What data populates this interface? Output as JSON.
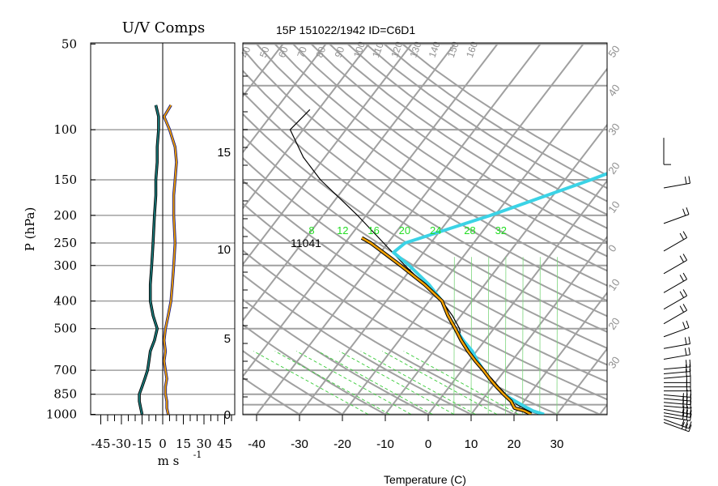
{
  "header": {
    "left_title": "U/V Comps",
    "main_title": "15P 151022/1942 ID=C6D1"
  },
  "left_panel": {
    "ylabel": "P (hPa)",
    "xlabel": "m s",
    "xlabel_exp": "-1",
    "pressure_ticks": [
      "50",
      "100",
      "150",
      "200",
      "250",
      "300",
      "400",
      "500",
      "700",
      "850",
      "1000"
    ],
    "x_ticks": [
      "-45",
      "-30",
      "-15",
      "0",
      "15",
      "30",
      "45"
    ]
  },
  "skewt": {
    "xlabel": "Temperature (C)",
    "x_ticks": [
      "-40",
      "-30",
      "-20",
      "-10",
      "0",
      "10",
      "20",
      "30"
    ],
    "height_ticks": [
      "0",
      "5",
      "10",
      "15"
    ],
    "mixing_ratio_labels": [
      "8",
      "12",
      "16",
      "20",
      "24",
      "28",
      "32"
    ],
    "isotherm_top_labels": [
      "40",
      "50",
      "60",
      "70",
      "80",
      "90",
      "100",
      "110",
      "120",
      "130",
      "140",
      "150",
      "160"
    ],
    "right_labels": [
      "50",
      "40",
      "30",
      "20",
      "10",
      "0",
      "10",
      "20",
      "30"
    ],
    "annotation": "11041"
  },
  "chart_data": [
    {
      "type": "line",
      "title": "U/V Comps",
      "xlabel": "m s -1",
      "ylabel": "P (hPa)",
      "xlim": [
        -50,
        50
      ],
      "ylim": [
        1000,
        50
      ],
      "y_scale": "log",
      "series": [
        {
          "color": "#1a7a7a",
          "p": [
            1000,
            950,
            900,
            850,
            800,
            750,
            700,
            650,
            600,
            550,
            500,
            450,
            400,
            350,
            300,
            250,
            200,
            170,
            150,
            130,
            115,
            100,
            90,
            82
          ],
          "values": [
            -15,
            -16,
            -17,
            -17,
            -15,
            -13,
            -11,
            -10,
            -9,
            -6,
            -4,
            -7,
            -9,
            -9,
            -8,
            -7,
            -6,
            -5,
            -5,
            -4,
            -4,
            -3,
            -3,
            -5
          ]
        },
        {
          "color": "#f0a000",
          "p": [
            1000,
            950,
            900,
            850,
            800,
            750,
            700,
            650,
            600,
            550,
            500,
            450,
            400,
            350,
            300,
            250,
            200,
            170,
            150,
            130,
            115,
            100,
            90,
            82
          ],
          "values": [
            4,
            3,
            3,
            2,
            2,
            3,
            2,
            1,
            2,
            1,
            2,
            4,
            6,
            7,
            8,
            9,
            8,
            8,
            9,
            10,
            9,
            5,
            1,
            6
          ]
        }
      ]
    },
    {
      "type": "line",
      "title": "15P 151022/1942 ID=C6D1",
      "xlabel": "Temperature (C)",
      "ylabel": "",
      "xlim": [
        -45,
        40
      ],
      "ylim": [
        1000,
        50
      ],
      "y_scale": "log",
      "series": [
        {
          "color": "#000000",
          "p": [
            1000,
            975,
            950,
            925,
            900,
            850,
            800,
            750,
            700,
            650,
            600,
            550,
            500,
            450,
            400,
            350,
            300,
            250,
            200,
            150,
            125,
            100,
            85
          ],
          "values": [
            26,
            23,
            21,
            19,
            17.5,
            14.5,
            11.5,
            8.5,
            5,
            1.5,
            -2,
            -5.5,
            -8,
            -12,
            -17,
            -24,
            -32,
            -41,
            -52,
            -67,
            -75,
            -83,
            -82
          ]
        },
        {
          "color": "#3bd3e6",
          "p": [
            1000,
            975,
            950,
            925,
            900,
            850,
            800,
            750,
            700,
            650,
            600,
            550,
            500,
            450,
            400,
            350,
            300,
            270,
            250,
            200,
            150,
            100,
            70
          ],
          "values": [
            27,
            24,
            22,
            20,
            18,
            14,
            11,
            8,
            5,
            2,
            -1,
            -5,
            -9,
            -13,
            -17,
            -23,
            -31,
            -37,
            -36,
            -21,
            -4,
            18,
            40
          ]
        },
        {
          "color": "#f0a000",
          "p": [
            1000,
            975,
            950,
            925,
            900,
            850,
            800,
            750,
            700,
            650,
            600,
            550,
            500,
            450,
            400,
            350,
            300,
            250,
            240
          ],
          "values": [
            24,
            22,
            19,
            18,
            17,
            14,
            11,
            8,
            5,
            1.5,
            -2,
            -5.5,
            -9,
            -13,
            -17,
            -24,
            -33,
            -44,
            -47
          ]
        }
      ]
    },
    {
      "type": "wind_barbs",
      "title": "",
      "p": [
        1000,
        975,
        950,
        925,
        900,
        875,
        850,
        825,
        800,
        775,
        750,
        725,
        700,
        675,
        650,
        600,
        550,
        500,
        450,
        400,
        350,
        300,
        250,
        200,
        150,
        100
      ],
      "speed_kt": [
        25,
        25,
        30,
        30,
        30,
        25,
        25,
        25,
        20,
        20,
        20,
        15,
        15,
        15,
        15,
        15,
        15,
        15,
        15,
        20,
        20,
        20,
        20,
        15,
        15,
        10
      ],
      "direction_deg": [
        110,
        110,
        100,
        100,
        100,
        95,
        95,
        95,
        95,
        90,
        90,
        90,
        85,
        85,
        85,
        80,
        80,
        70,
        60,
        60,
        60,
        60,
        60,
        70,
        80,
        180
      ]
    }
  ]
}
